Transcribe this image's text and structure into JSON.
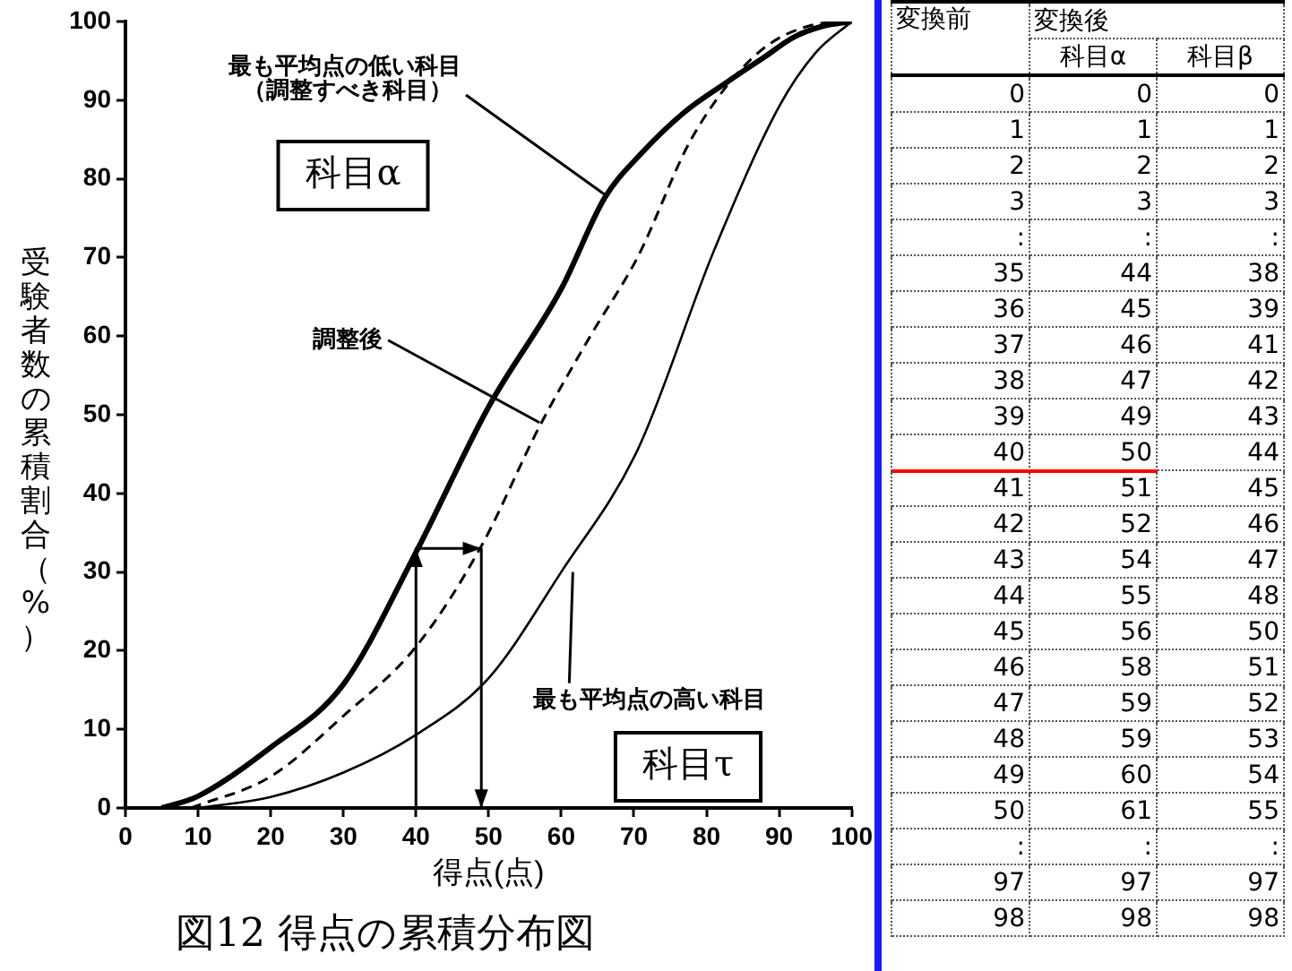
{
  "chart_data": [
    {
      "type": "line",
      "title": "図12 得点の累積分布図",
      "xlabel": "得点(点)",
      "ylabel": "受験者数の累積割合（%）",
      "xlim": [
        0,
        100
      ],
      "ylim": [
        0,
        100
      ],
      "xticks": [
        0,
        10,
        20,
        30,
        40,
        50,
        60,
        70,
        80,
        90,
        100
      ],
      "yticks": [
        0,
        10,
        20,
        30,
        40,
        50,
        60,
        70,
        80,
        90,
        100
      ],
      "grid": false,
      "legend": false,
      "marker": "none",
      "series": [
        {
          "color": "#000000",
          "line_style": "solid",
          "x": [
            5,
            10,
            20,
            30,
            40,
            50,
            60,
            66,
            71,
            77,
            83,
            88,
            92,
            96,
            100
          ],
          "values": [
            0,
            1.5,
            7.7,
            15.7,
            32.5,
            51,
            66,
            77.6,
            83.2,
            88.5,
            92.4,
            95.5,
            98,
            99.4,
            100
          ]
        },
        {
          "color": "#000000",
          "line_style": "dashed",
          "x": [
            9,
            20,
            30,
            40,
            49,
            57,
            64,
            70.5,
            78,
            86.6,
            94.8,
            100
          ],
          "values": [
            0,
            4,
            11.7,
            20.5,
            33.3,
            48.5,
            60,
            70,
            85.2,
            95.6,
            99.6,
            100
          ]
        },
        {
          "color": "#000000",
          "line_style": "solid",
          "x": [
            10,
            20,
            30,
            40,
            50,
            60,
            70.5,
            81,
            90,
            95,
            100
          ],
          "values": [
            0,
            1.4,
            4.5,
            9.3,
            16.5,
            30,
            45.5,
            70.8,
            89.2,
            96,
            100
          ]
        },
        {
          "color": "#000000",
          "line_style": "solid",
          "x": [
            40,
            40,
            49,
            49
          ],
          "values": [
            0,
            33,
            33,
            0
          ]
        }
      ],
      "annotations": [
        {
          "text": "最も平均点の低い科目",
          "x": 66,
          "y": 78
        },
        "（調整すべき科目）",
        {
          "text": "調整後",
          "x": 57,
          "y": 49
        },
        {
          "text": "最も平均点の高い科目",
          "x": 61.6,
          "y": 30
        },
        "科目α",
        "科目τ"
      ]
    },
    {
      "type": "heatmap",
      "ylabel": "変換前",
      "xlabel": "変換後",
      "categories": [
        "科目α",
        "科目β"
      ],
      "y_categories": [
        "0",
        "1",
        "2",
        "3",
        ":",
        "35",
        "36",
        "37",
        "38",
        "39",
        "40",
        "41",
        "42",
        "43",
        "44",
        "45",
        "46",
        "47",
        "48",
        "49",
        "50",
        ":",
        "97",
        "98"
      ],
      "cells": [
        [
          0,
          0
        ],
        [
          1,
          1
        ],
        [
          2,
          2
        ],
        [
          3,
          3
        ],
        [
          null,
          null
        ],
        [
          44,
          38
        ],
        [
          45,
          39
        ],
        [
          46,
          41
        ],
        [
          47,
          42
        ],
        [
          49,
          43
        ],
        [
          50,
          44
        ],
        [
          51,
          45
        ],
        [
          52,
          46
        ],
        [
          54,
          47
        ],
        [
          55,
          48
        ],
        [
          56,
          50
        ],
        [
          58,
          51
        ],
        [
          59,
          52
        ],
        [
          59,
          53
        ],
        [
          60,
          54
        ],
        [
          61,
          55
        ],
        [
          null,
          null
        ],
        [
          97,
          97
        ],
        [
          98,
          98
        ]
      ],
      "cell_labels": [
        [
          "0",
          "0"
        ],
        [
          "1",
          "1"
        ],
        [
          "2",
          "2"
        ],
        [
          "3",
          "3"
        ],
        [
          ":",
          ":"
        ],
        [
          "44",
          "38"
        ],
        [
          "45",
          "39"
        ],
        [
          "46",
          "41"
        ],
        [
          "47",
          "42"
        ],
        [
          "49",
          "43"
        ],
        [
          "50",
          "44"
        ],
        [
          "51",
          "45"
        ],
        [
          "52",
          "46"
        ],
        [
          "54",
          "47"
        ],
        [
          "55",
          "48"
        ],
        [
          "56",
          "50"
        ],
        [
          "58",
          "51"
        ],
        [
          "59",
          "52"
        ],
        [
          "59",
          "53"
        ],
        [
          "60",
          "54"
        ],
        [
          "61",
          "55"
        ],
        [
          ":",
          ":"
        ],
        [
          "97",
          "97"
        ],
        [
          "98",
          "98"
        ]
      ],
      "ref_lines": [
        {
          "axis": "y",
          "value": "40",
          "color": "#ff0000"
        }
      ]
    }
  ]
}
